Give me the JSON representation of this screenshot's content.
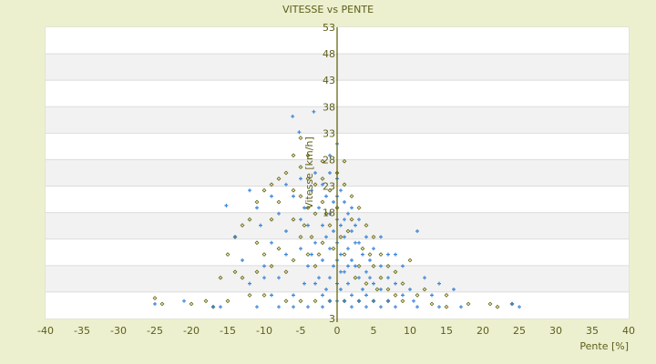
{
  "chart_data": {
    "type": "scatter",
    "title": "VITESSE vs PENTE",
    "xlabel": "Pente [%]",
    "ylabel": "Vitesse [km/h]",
    "xlim": [
      -40,
      40
    ],
    "ylim": [
      3,
      53
    ],
    "xticks": [
      -40,
      -35,
      -30,
      -25,
      -20,
      -15,
      -10,
      -5,
      0,
      5,
      10,
      15,
      20,
      25,
      30,
      35,
      40
    ],
    "yticks": [
      53,
      48,
      43,
      38,
      33,
      28,
      23,
      18,
      3
    ],
    "grid": "horizontal bands",
    "colors": {
      "series_a": "#3a86d8",
      "series_b": "#6b6b12",
      "axis": "#5a5a00",
      "band": "#f2f2f2",
      "background": "#ecf0cf"
    },
    "series": [
      {
        "marker": "plus",
        "color": "#3a86d8",
        "points": [
          [
            -6.1,
            37.7
          ],
          [
            -3.2,
            38.5
          ],
          [
            -5.2,
            35
          ],
          [
            -1,
            31
          ],
          [
            0,
            33
          ],
          [
            -15.2,
            22.4
          ],
          [
            -11,
            22
          ],
          [
            -10.5,
            19
          ],
          [
            -9,
            16
          ],
          [
            -8,
            21
          ],
          [
            -7,
            14
          ],
          [
            -6,
            24
          ],
          [
            -5,
            27
          ],
          [
            -4.5,
            22
          ],
          [
            -4,
            19
          ],
          [
            -4,
            12
          ],
          [
            -3.5,
            25
          ],
          [
            -3,
            28
          ],
          [
            -3,
            16
          ],
          [
            -3,
            9
          ],
          [
            -2.5,
            22
          ],
          [
            -2,
            26
          ],
          [
            -2,
            19
          ],
          [
            -2,
            13
          ],
          [
            -2,
            7
          ],
          [
            -1.5,
            24
          ],
          [
            -1.5,
            17
          ],
          [
            -1,
            28
          ],
          [
            -1,
            21
          ],
          [
            -1,
            15
          ],
          [
            -1,
            10
          ],
          [
            -1,
            6
          ],
          [
            -0.5,
            23
          ],
          [
            -0.5,
            18
          ],
          [
            -0.5,
            12
          ],
          [
            0,
            27
          ],
          [
            0,
            24
          ],
          [
            0,
            20
          ],
          [
            0,
            16
          ],
          [
            0,
            13
          ],
          [
            0,
            9
          ],
          [
            0,
            6
          ],
          [
            0.5,
            25
          ],
          [
            0.5,
            19
          ],
          [
            0.5,
            14
          ],
          [
            0.5,
            8
          ],
          [
            1,
            23
          ],
          [
            1,
            20
          ],
          [
            1,
            17
          ],
          [
            1,
            11
          ],
          [
            1,
            6
          ],
          [
            1.5,
            21
          ],
          [
            1.5,
            15
          ],
          [
            1.5,
            9
          ],
          [
            2,
            22
          ],
          [
            2,
            18
          ],
          [
            2,
            13
          ],
          [
            2,
            7
          ],
          [
            2.5,
            19
          ],
          [
            2.5,
            12
          ],
          [
            3,
            20
          ],
          [
            3,
            16
          ],
          [
            3,
            10
          ],
          [
            3,
            6
          ],
          [
            3.5,
            14
          ],
          [
            4,
            17
          ],
          [
            4,
            11
          ],
          [
            4,
            7
          ],
          [
            4.5,
            13
          ],
          [
            5,
            15
          ],
          [
            5,
            9
          ],
          [
            5,
            6
          ],
          [
            6,
            12
          ],
          [
            6,
            8
          ],
          [
            7,
            10
          ],
          [
            7,
            6
          ],
          [
            8,
            9
          ],
          [
            8,
            14
          ],
          [
            9,
            12
          ],
          [
            10,
            8
          ],
          [
            11,
            18
          ],
          [
            10.5,
            6
          ],
          [
            12,
            10
          ],
          [
            14,
            9
          ],
          [
            16,
            8
          ],
          [
            -12,
            9
          ],
          [
            -10,
            12
          ],
          [
            -9,
            7
          ],
          [
            -8,
            10
          ],
          [
            -7,
            18
          ],
          [
            -6,
            7
          ],
          [
            -5,
            15
          ],
          [
            -13,
            13
          ],
          [
            -11,
            5
          ],
          [
            -8,
            5
          ],
          [
            -6,
            5
          ],
          [
            -4,
            5
          ],
          [
            -2,
            5
          ],
          [
            2,
            5
          ],
          [
            4,
            5
          ],
          [
            6,
            5
          ],
          [
            8,
            5
          ],
          [
            11,
            5
          ],
          [
            14,
            5
          ],
          [
            17,
            5
          ],
          [
            24,
            5.5
          ],
          [
            25,
            5
          ],
          [
            -17,
            5
          ],
          [
            -21,
            6
          ],
          [
            -16,
            5
          ],
          [
            -25,
            5.5
          ],
          [
            -4.5,
            9
          ],
          [
            -3.5,
            14
          ],
          [
            -2.5,
            10
          ],
          [
            -1.5,
            8
          ],
          [
            0.5,
            11
          ],
          [
            1.5,
            12
          ],
          [
            2.5,
            16
          ],
          [
            3.5,
            8
          ],
          [
            4.5,
            10
          ],
          [
            -9,
            24
          ],
          [
            -12,
            25
          ],
          [
            -7,
            26
          ],
          [
            -5,
            20
          ],
          [
            6,
            17
          ],
          [
            7,
            14
          ],
          [
            9,
            7
          ],
          [
            13,
            7
          ],
          [
            -14,
            17
          ],
          [
            -10,
            10
          ]
        ]
      },
      {
        "marker": "diamond",
        "color": "#6b6b12",
        "points": [
          [
            -5,
            34
          ],
          [
            -6,
            31
          ],
          [
            -2,
            30
          ],
          [
            1,
            30
          ],
          [
            -4,
            31
          ],
          [
            -8,
            27
          ],
          [
            -9,
            26
          ],
          [
            -10,
            25
          ],
          [
            -11,
            23
          ],
          [
            -12,
            20
          ],
          [
            -13,
            19
          ],
          [
            -14,
            17
          ],
          [
            -11,
            16
          ],
          [
            -9,
            20
          ],
          [
            -8,
            23
          ],
          [
            -7,
            28
          ],
          [
            -6,
            25
          ],
          [
            -6,
            20
          ],
          [
            -5,
            29
          ],
          [
            -5,
            24
          ],
          [
            -5,
            17
          ],
          [
            -4,
            27
          ],
          [
            -4,
            22
          ],
          [
            -4,
            14
          ],
          [
            -3,
            26
          ],
          [
            -3,
            21
          ],
          [
            -3,
            12
          ],
          [
            -2,
            27
          ],
          [
            -2,
            23
          ],
          [
            -2,
            16
          ],
          [
            -1,
            25
          ],
          [
            -1,
            19
          ],
          [
            0,
            22
          ],
          [
            0,
            28
          ],
          [
            1,
            26
          ],
          [
            1,
            14
          ],
          [
            2,
            24
          ],
          [
            2,
            20
          ],
          [
            3,
            22
          ],
          [
            3,
            12
          ],
          [
            4,
            19
          ],
          [
            4,
            9
          ],
          [
            5,
            17
          ],
          [
            5,
            12
          ],
          [
            6,
            14
          ],
          [
            6,
            10
          ],
          [
            7,
            12
          ],
          [
            7,
            8
          ],
          [
            8,
            11
          ],
          [
            8,
            7
          ],
          [
            9,
            9
          ],
          [
            10,
            13
          ],
          [
            11,
            7
          ],
          [
            12,
            8
          ],
          [
            15,
            7
          ],
          [
            -10,
            14
          ],
          [
            -9,
            12
          ],
          [
            -8,
            15
          ],
          [
            -7,
            11
          ],
          [
            -6,
            13
          ],
          [
            -13,
            10
          ],
          [
            -12,
            7
          ],
          [
            -10,
            7
          ],
          [
            -7,
            6
          ],
          [
            -5,
            6
          ],
          [
            -3,
            6
          ],
          [
            -1,
            6
          ],
          [
            1,
            6
          ],
          [
            3,
            6
          ],
          [
            5,
            6
          ],
          [
            7,
            6
          ],
          [
            9,
            6
          ],
          [
            13,
            5.5
          ],
          [
            15,
            5
          ],
          [
            18,
            5.5
          ],
          [
            21,
            5.5
          ],
          [
            22,
            5
          ],
          [
            24,
            5.5
          ],
          [
            -25,
            6.5
          ],
          [
            -24,
            5.5
          ],
          [
            -20,
            5.5
          ],
          [
            -18,
            6
          ],
          [
            -17,
            5
          ],
          [
            -15,
            6
          ],
          [
            -4.5,
            19
          ],
          [
            -3.5,
            17
          ],
          [
            -2.5,
            14
          ],
          [
            -1.5,
            21
          ],
          [
            -0.5,
            15
          ],
          [
            0.5,
            17
          ],
          [
            1.5,
            18
          ],
          [
            2.5,
            10
          ],
          [
            3.5,
            15
          ],
          [
            4.5,
            14
          ],
          [
            5.5,
            8
          ],
          [
            -14,
            11
          ],
          [
            -11,
            11
          ],
          [
            -15,
            14
          ],
          [
            -16,
            10
          ]
        ]
      }
    ]
  }
}
